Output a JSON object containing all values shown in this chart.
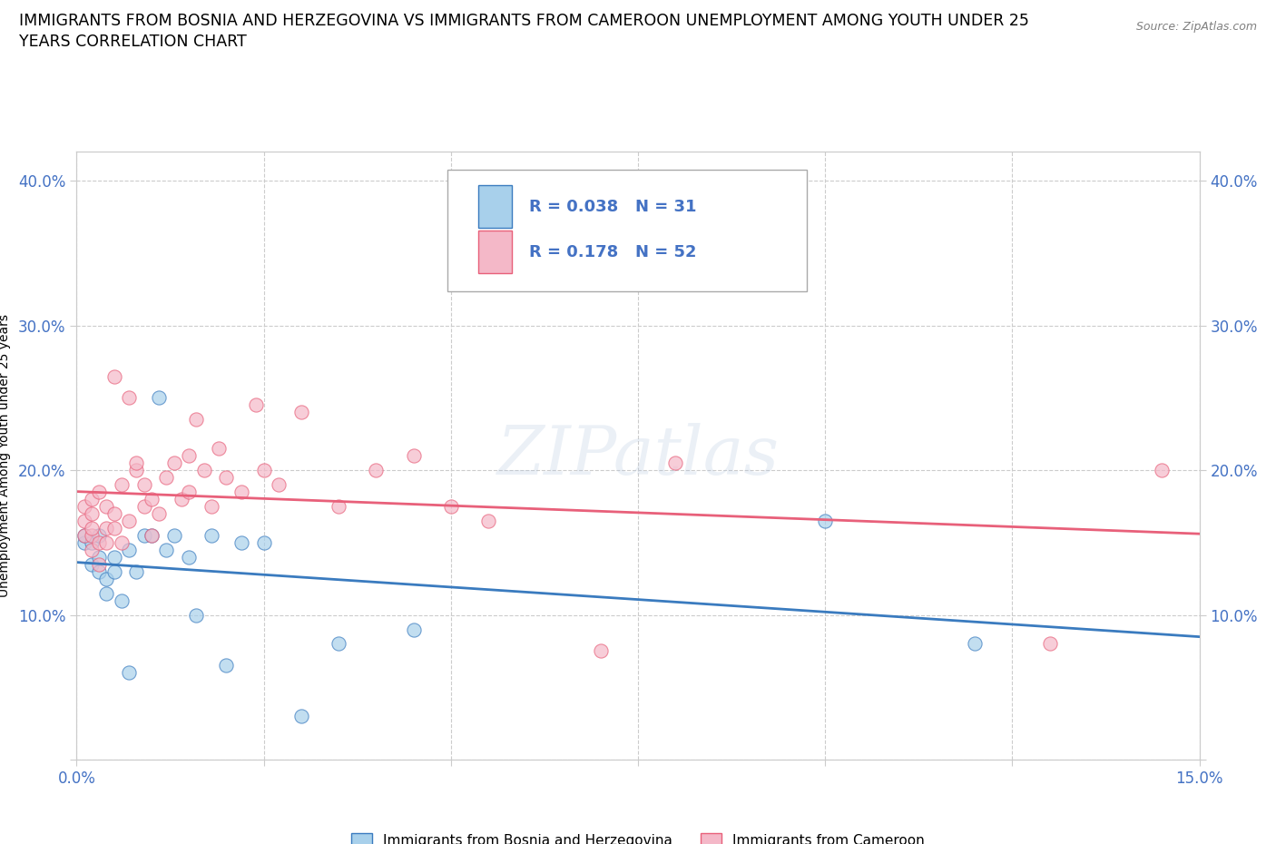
{
  "title_line1": "IMMIGRANTS FROM BOSNIA AND HERZEGOVINA VS IMMIGRANTS FROM CAMEROON UNEMPLOYMENT AMONG YOUTH UNDER 25",
  "title_line2": "YEARS CORRELATION CHART",
  "source_text": "Source: ZipAtlas.com",
  "ylabel": "Unemployment Among Youth under 25 years",
  "xlim": [
    0.0,
    0.15
  ],
  "ylim": [
    0.0,
    0.42
  ],
  "xticks": [
    0.0,
    0.025,
    0.05,
    0.075,
    0.1,
    0.125,
    0.15
  ],
  "xticklabels": [
    "0.0%",
    "",
    "",
    "",
    "",
    "",
    "15.0%"
  ],
  "yticks": [
    0.0,
    0.1,
    0.2,
    0.3,
    0.4
  ],
  "yticklabels": [
    "",
    "10.0%",
    "20.0%",
    "30.0%",
    "40.0%"
  ],
  "bosnia_color": "#a8d0eb",
  "cameroon_color": "#f4b8c8",
  "bosnia_line_color": "#3a7bbf",
  "cameroon_line_color": "#e8607a",
  "legend_R_bosnia": "R = 0.038",
  "legend_N_bosnia": "N = 31",
  "legend_R_cameroon": "R = 0.178",
  "legend_N_cameroon": "N = 52",
  "legend_bosnia_label": "Immigrants from Bosnia and Herzegovina",
  "legend_cameroon_label": "Immigrants from Cameroon",
  "watermark": "ZIPatlas",
  "tick_color": "#4472c4",
  "background_color": "#ffffff",
  "grid_color": "#cccccc",
  "title_fontsize": 12.5,
  "bosnia_x": [
    0.001,
    0.001,
    0.002,
    0.002,
    0.003,
    0.003,
    0.003,
    0.004,
    0.004,
    0.005,
    0.005,
    0.006,
    0.007,
    0.007,
    0.008,
    0.009,
    0.01,
    0.011,
    0.012,
    0.013,
    0.015,
    0.016,
    0.018,
    0.02,
    0.022,
    0.025,
    0.03,
    0.035,
    0.045,
    0.1,
    0.12
  ],
  "bosnia_y": [
    0.15,
    0.155,
    0.135,
    0.15,
    0.13,
    0.14,
    0.155,
    0.125,
    0.115,
    0.14,
    0.13,
    0.11,
    0.145,
    0.06,
    0.13,
    0.155,
    0.155,
    0.25,
    0.145,
    0.155,
    0.14,
    0.1,
    0.155,
    0.065,
    0.15,
    0.15,
    0.03,
    0.08,
    0.09,
    0.165,
    0.08
  ],
  "cameroon_x": [
    0.001,
    0.001,
    0.001,
    0.002,
    0.002,
    0.002,
    0.002,
    0.002,
    0.003,
    0.003,
    0.003,
    0.004,
    0.004,
    0.004,
    0.005,
    0.005,
    0.005,
    0.006,
    0.006,
    0.007,
    0.007,
    0.008,
    0.008,
    0.009,
    0.009,
    0.01,
    0.01,
    0.011,
    0.012,
    0.013,
    0.014,
    0.015,
    0.015,
    0.016,
    0.017,
    0.018,
    0.019,
    0.02,
    0.022,
    0.024,
    0.025,
    0.027,
    0.03,
    0.035,
    0.04,
    0.045,
    0.05,
    0.055,
    0.07,
    0.08,
    0.13,
    0.145
  ],
  "cameroon_y": [
    0.155,
    0.165,
    0.175,
    0.145,
    0.155,
    0.16,
    0.17,
    0.18,
    0.135,
    0.15,
    0.185,
    0.15,
    0.16,
    0.175,
    0.16,
    0.17,
    0.265,
    0.15,
    0.19,
    0.25,
    0.165,
    0.2,
    0.205,
    0.175,
    0.19,
    0.155,
    0.18,
    0.17,
    0.195,
    0.205,
    0.18,
    0.21,
    0.185,
    0.235,
    0.2,
    0.175,
    0.215,
    0.195,
    0.185,
    0.245,
    0.2,
    0.19,
    0.24,
    0.175,
    0.2,
    0.21,
    0.175,
    0.165,
    0.075,
    0.205,
    0.08,
    0.2
  ]
}
